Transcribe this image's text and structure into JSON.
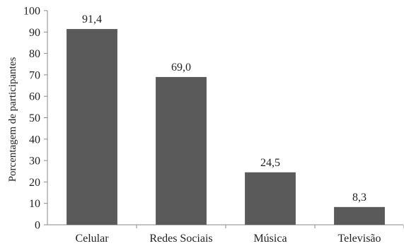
{
  "chart_data": {
    "type": "bar",
    "title": "",
    "xlabel": "",
    "ylabel": "Porcentagem de participantes",
    "categories": [
      "Celular",
      "Redes Sociais",
      "Música",
      "Televisão"
    ],
    "values": [
      91.4,
      69.0,
      24.5,
      8.3
    ],
    "value_labels": [
      "91,4",
      "69,0",
      "24,5",
      "8,3"
    ],
    "ylim": [
      0,
      100
    ],
    "yticks": [
      0,
      10,
      20,
      30,
      40,
      50,
      60,
      70,
      80,
      90,
      100
    ],
    "ytick_labels": [
      "0",
      "10",
      "20",
      "30",
      "40",
      "50",
      "60",
      "70",
      "80",
      "90",
      "100"
    ],
    "grid": false,
    "legend": "none",
    "colors": {
      "bar": "#5a5a5a",
      "axis": "#8a8a8a",
      "text": "#1f1f1f"
    }
  }
}
